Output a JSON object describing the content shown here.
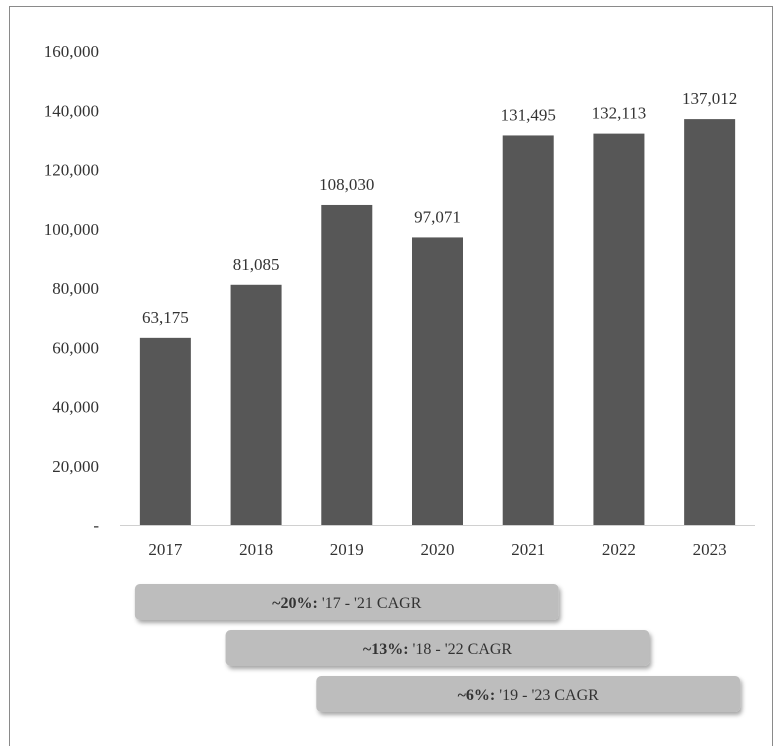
{
  "chart_data": {
    "type": "bar",
    "categories": [
      "2017",
      "2018",
      "2019",
      "2020",
      "2021",
      "2022",
      "2023"
    ],
    "values": [
      63175,
      81085,
      108030,
      97071,
      131495,
      132113,
      137012
    ],
    "data_labels": [
      "63,175",
      "81,085",
      "108,030",
      "97,071",
      "131,495",
      "132,113",
      "137,012"
    ],
    "ylim": [
      0,
      160000
    ],
    "y_ticks": [
      0,
      20000,
      40000,
      60000,
      80000,
      100000,
      120000,
      140000,
      160000
    ],
    "y_tick_labels": [
      "-",
      "20,000",
      "40,000",
      "60,000",
      "80,000",
      "100,000",
      "120,000",
      "140,000",
      "160,000"
    ],
    "grid": false,
    "bar_color": "#575757",
    "annotations": [
      {
        "percent": "~20%:",
        "text": " '17 - '21 CAGR",
        "from": "2017",
        "to": "2021"
      },
      {
        "percent": "~13%:",
        "text": " '18 - '22 CAGR",
        "from": "2018",
        "to": "2022"
      },
      {
        "percent": "~6%:",
        "text": " '19 - '23 CAGR",
        "from": "2019",
        "to": "2023"
      }
    ],
    "annotation_color": "#bdbdbd"
  }
}
